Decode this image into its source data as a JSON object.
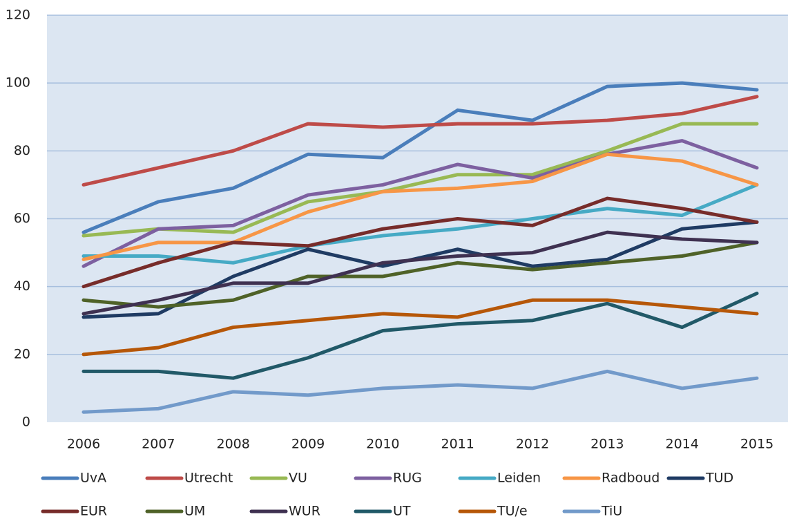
{
  "chart_data": {
    "type": "line",
    "x": [
      2006,
      2007,
      2008,
      2009,
      2010,
      2011,
      2012,
      2013,
      2014,
      2015
    ],
    "xlim": [
      2006,
      2015
    ],
    "ylim": [
      0,
      120
    ],
    "yticks": [
      0,
      20,
      40,
      60,
      80,
      100,
      120
    ],
    "grid": true,
    "legend": "bottom",
    "series": [
      {
        "name": "UvA",
        "color": "#4a7ebb",
        "values": [
          56,
          65,
          69,
          79,
          78,
          92,
          89,
          99,
          100,
          98
        ]
      },
      {
        "name": "Utrecht",
        "color": "#be4b48",
        "values": [
          70,
          75,
          80,
          88,
          87,
          88,
          88,
          89,
          91,
          96
        ]
      },
      {
        "name": "VU",
        "color": "#98b954",
        "values": [
          55,
          57,
          56,
          65,
          68,
          73,
          73,
          80,
          88,
          88
        ]
      },
      {
        "name": "RUG",
        "color": "#7d60a0",
        "values": [
          46,
          57,
          58,
          67,
          70,
          76,
          72,
          79,
          83,
          75
        ]
      },
      {
        "name": "Leiden",
        "color": "#46aac5",
        "values": [
          49,
          49,
          47,
          52,
          55,
          57,
          60,
          63,
          61,
          70
        ]
      },
      {
        "name": "Radboud",
        "color": "#f79646",
        "values": [
          48,
          53,
          53,
          62,
          68,
          69,
          71,
          79,
          77,
          70
        ]
      },
      {
        "name": "TUD",
        "color": "#1f3b63",
        "values": [
          31,
          32,
          43,
          51,
          46,
          51,
          46,
          48,
          57,
          59
        ]
      },
      {
        "name": "EUR",
        "color": "#772c2a",
        "values": [
          40,
          47,
          53,
          52,
          57,
          60,
          58,
          66,
          63,
          59
        ]
      },
      {
        "name": "UM",
        "color": "#4f6228",
        "values": [
          36,
          34,
          36,
          43,
          43,
          47,
          45,
          47,
          49,
          53
        ]
      },
      {
        "name": "WUR",
        "color": "#3f3151",
        "values": [
          32,
          36,
          41,
          41,
          47,
          49,
          50,
          56,
          54,
          53
        ]
      },
      {
        "name": "UT",
        "color": "#215968",
        "values": [
          15,
          15,
          13,
          19,
          27,
          29,
          30,
          35,
          28,
          38
        ]
      },
      {
        "name": "TU/e",
        "color": "#b65708",
        "values": [
          20,
          22,
          28,
          30,
          32,
          31,
          36,
          36,
          34,
          32
        ]
      },
      {
        "name": "TiU",
        "color": "#729aca",
        "values": [
          3,
          4,
          9,
          8,
          10,
          11,
          10,
          15,
          10,
          13
        ]
      }
    ]
  }
}
